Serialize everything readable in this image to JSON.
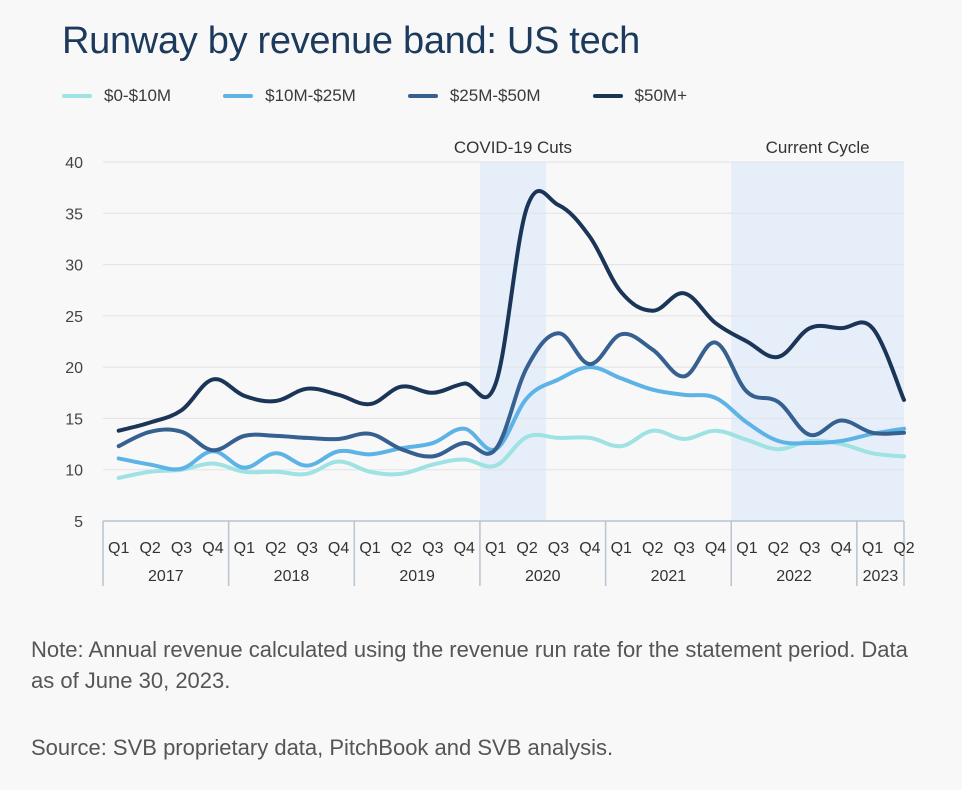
{
  "title": "Runway by revenue band: US tech",
  "note": "Note: Annual revenue calculated using the revenue run rate for the statement period. Data as of June 30, 2023.",
  "source": "Source: SVB proprietary data, PitchBook and SVB analysis.",
  "legend": [
    {
      "label": "$0-$10M",
      "color": "#9ee2e4"
    },
    {
      "label": "$10M-$25M",
      "color": "#5eb3e6"
    },
    {
      "label": "$25M-$50M",
      "color": "#35608f"
    },
    {
      "label": "$50M+",
      "color": "#1b3558"
    }
  ],
  "chart_data": {
    "type": "line",
    "title": "Runway by revenue band: US tech",
    "xlabel": "",
    "ylabel": "",
    "ylim": [
      5,
      40
    ],
    "yticks": [
      5,
      10,
      15,
      20,
      25,
      30,
      35,
      40
    ],
    "grid": true,
    "categories": [
      "Q1",
      "Q2",
      "Q3",
      "Q4",
      "Q1",
      "Q2",
      "Q3",
      "Q4",
      "Q1",
      "Q2",
      "Q3",
      "Q4",
      "Q1",
      "Q2",
      "Q3",
      "Q4",
      "Q1",
      "Q2",
      "Q3",
      "Q4",
      "Q1",
      "Q2",
      "Q3",
      "Q4",
      "Q1",
      "Q2"
    ],
    "years": [
      {
        "label": "2017",
        "start": 0,
        "count": 4
      },
      {
        "label": "2018",
        "start": 4,
        "count": 4
      },
      {
        "label": "2019",
        "start": 8,
        "count": 4
      },
      {
        "label": "2020",
        "start": 12,
        "count": 4
      },
      {
        "label": "2021",
        "start": 16,
        "count": 4
      },
      {
        "label": "2022",
        "start": 20,
        "count": 4
      },
      {
        "label": "2023",
        "start": 24,
        "count": 2
      }
    ],
    "bands": [
      {
        "label": "COVID-19 Cuts",
        "from": 12,
        "to": 13.6
      },
      {
        "label": "Current Cycle",
        "from": 20,
        "to": 25.5
      }
    ],
    "series": [
      {
        "name": "$0-$10M",
        "color": "#9ee2e4",
        "values": [
          9.2,
          9.8,
          10.0,
          10.6,
          9.8,
          9.8,
          9.6,
          10.8,
          9.8,
          9.6,
          10.5,
          11.0,
          10.4,
          13.2,
          13.1,
          13.1,
          12.3,
          13.8,
          13.0,
          13.8,
          12.9,
          12.0,
          12.8,
          12.5,
          11.6,
          11.3
        ]
      },
      {
        "name": "$10M-$25M",
        "color": "#5eb3e6",
        "values": [
          11.1,
          10.5,
          10.1,
          11.8,
          10.2,
          11.6,
          10.4,
          11.8,
          11.5,
          12.1,
          12.6,
          14.0,
          12.0,
          17.0,
          18.8,
          20.0,
          18.9,
          17.8,
          17.3,
          17.0,
          14.6,
          12.8,
          12.6,
          12.8,
          13.5,
          14.0
        ]
      },
      {
        "name": "$25M-$50M",
        "color": "#35608f",
        "values": [
          12.3,
          13.7,
          13.7,
          11.9,
          13.3,
          13.3,
          13.1,
          13.0,
          13.5,
          12.0,
          11.3,
          12.6,
          12.0,
          20.0,
          23.3,
          20.3,
          23.2,
          21.7,
          19.1,
          22.4,
          17.6,
          16.6,
          13.4,
          14.8,
          13.6,
          13.6
        ]
      },
      {
        "name": "$50M+",
        "color": "#1b3558",
        "values": [
          13.8,
          14.6,
          15.8,
          18.8,
          17.2,
          16.7,
          17.9,
          17.3,
          16.4,
          18.1,
          17.5,
          18.4,
          18.4,
          35.6,
          35.8,
          32.7,
          27.3,
          25.5,
          27.2,
          24.3,
          22.5,
          21.0,
          23.8,
          23.8,
          23.8,
          16.8
        ]
      }
    ]
  }
}
